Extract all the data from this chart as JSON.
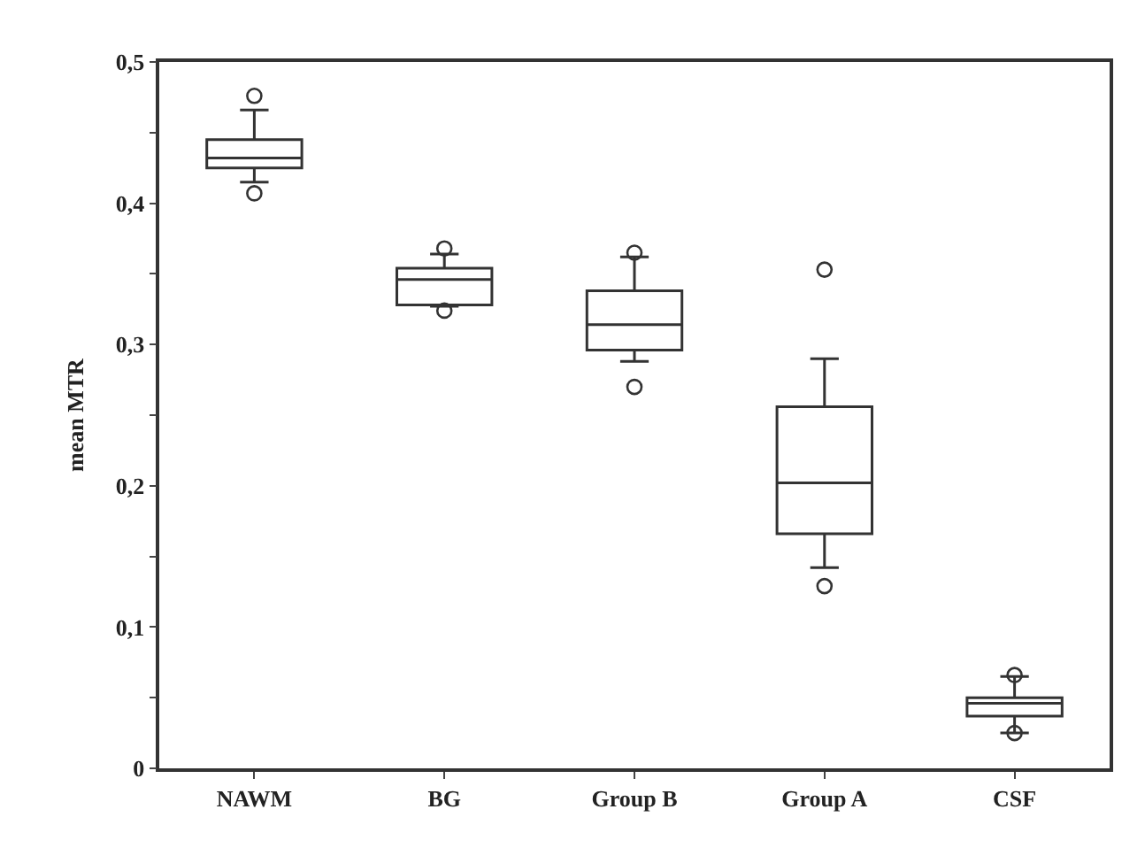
{
  "chart_data": {
    "type": "box",
    "ylabel": "mean MTR",
    "categories": [
      "NAWM",
      "BG",
      "Group B",
      "Group A",
      "CSF"
    ],
    "boxes": [
      {
        "low": 0.415,
        "q1": 0.425,
        "median": 0.432,
        "q3": 0.445,
        "high": 0.466,
        "outliers": [
          0.476,
          0.407
        ]
      },
      {
        "low": 0.327,
        "q1": 0.328,
        "median": 0.346,
        "q3": 0.354,
        "high": 0.364,
        "outliers": [
          0.368,
          0.324
        ]
      },
      {
        "low": 0.288,
        "q1": 0.296,
        "median": 0.314,
        "q3": 0.338,
        "high": 0.362,
        "outliers": [
          0.365,
          0.27
        ]
      },
      {
        "low": 0.142,
        "q1": 0.166,
        "median": 0.202,
        "q3": 0.256,
        "high": 0.29,
        "outliers": [
          0.353,
          0.129
        ]
      },
      {
        "low": 0.025,
        "q1": 0.037,
        "median": 0.046,
        "q3": 0.05,
        "high": 0.065,
        "outliers": [
          0.066,
          0.025
        ]
      }
    ],
    "color": "#333333",
    "marker": "circle",
    "ylim": [
      0,
      0.5
    ],
    "yticks": [
      {
        "value": 0,
        "label": "0"
      },
      {
        "value": 0.05,
        "label": null
      },
      {
        "value": 0.1,
        "label": "0,1"
      },
      {
        "value": 0.15,
        "label": null
      },
      {
        "value": 0.2,
        "label": "0,2"
      },
      {
        "value": 0.25,
        "label": null
      },
      {
        "value": 0.3,
        "label": "0,3"
      },
      {
        "value": 0.35,
        "label": null
      },
      {
        "value": 0.4,
        "label": "0,4"
      },
      {
        "value": 0.45,
        "label": null
      },
      {
        "value": 0.5,
        "label": "0,5"
      }
    ]
  }
}
